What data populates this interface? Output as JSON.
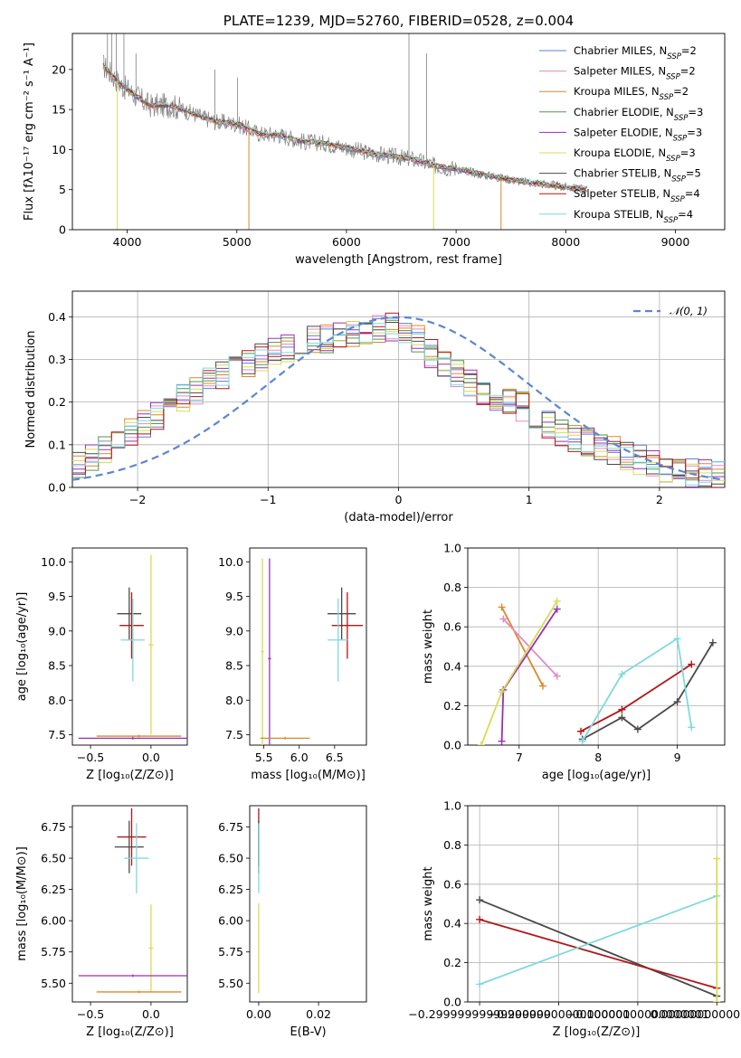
{
  "palette": {
    "chab_miles": "#5b7fd6",
    "salp_miles": "#e58ac2",
    "krou_miles": "#d98a2a",
    "chab_elodie": "#4c9a4c",
    "salp_elodie": "#9b30b5",
    "krou_elodie": "#d6dc55",
    "chab_stelib": "#4a4a4a",
    "salp_stelib": "#b01818",
    "krou_stelib": "#7fd9dc",
    "observed": "#808080",
    "gauss": "#5b86d4",
    "grid": "#b0b0b0"
  },
  "chart_data": [
    {
      "id": "spectrum",
      "type": "line",
      "title": "PLATE=1239, MJD=52760, FIBERID=0528, z=0.004",
      "xlabel": "wavelength [Angstrom, rest frame]",
      "ylabel": "Flux [fλ10⁻¹⁷ erg cm⁻² s⁻¹ A⁻¹]",
      "xlim": [
        3500,
        9450
      ],
      "ylim": [
        0,
        24.5
      ],
      "xticks": [
        4000,
        5000,
        6000,
        7000,
        8000,
        9000
      ],
      "yticks": [
        0,
        5,
        10,
        15,
        20
      ],
      "grid": false,
      "legend_position": "top-right",
      "legend": [
        "Chabrier MILES, N_SSP=2",
        "Salpeter MILES, N_SSP=2",
        "Kroupa MILES, N_SSP=2",
        "Chabrier ELODIE, N_SSP=3",
        "Salpeter ELODIE, N_SSP=3",
        "Kroupa ELODIE, N_SSP=3",
        "Chabrier STELIB, N_SSP=5",
        "Salpeter STELIB, N_SSP=4",
        "Kroupa STELIB, N_SSP=4"
      ],
      "continuum": {
        "wavelength": [
          3780,
          3850,
          3950,
          4050,
          4200,
          4400,
          4600,
          4800,
          5000,
          5200,
          5400,
          5600,
          5800,
          6000,
          6200,
          6400,
          6600,
          6800,
          7000,
          7200,
          7400,
          7600,
          7800,
          8000,
          8200
        ],
        "flux": [
          20.5,
          19.5,
          18.0,
          17.0,
          15.5,
          15.5,
          14.5,
          13.5,
          13.2,
          12.0,
          11.8,
          11.0,
          10.8,
          10.2,
          9.6,
          9.2,
          8.8,
          8.0,
          7.6,
          7.0,
          6.5,
          6.0,
          5.7,
          5.3,
          5.0
        ]
      },
      "observed_spikes": [
        {
          "wavelength": 3820,
          "flux": 24.5
        },
        {
          "wavelength": 3860,
          "flux": 24.5
        },
        {
          "wavelength": 3900,
          "flux": 24.5
        },
        {
          "wavelength": 3970,
          "flux": 24.5
        },
        {
          "wavelength": 4080,
          "flux": 22.0
        },
        {
          "wavelength": 4800,
          "flux": 20.0
        },
        {
          "wavelength": 5007,
          "flux": 19.0
        },
        {
          "wavelength": 6570,
          "flux": 24.5
        },
        {
          "wavelength": 6730,
          "flux": 22.0
        },
        {
          "wavelength": 8200,
          "flux": 5.0
        }
      ],
      "model_dropouts": [
        {
          "wavelength": 3910,
          "series": "Kroupa ELODIE"
        },
        {
          "wavelength": 5110,
          "series": "Kroupa MILES"
        },
        {
          "wavelength": 6795,
          "series": "Kroupa ELODIE"
        },
        {
          "wavelength": 7410,
          "series": "Kroupa MILES"
        }
      ]
    },
    {
      "id": "residuals",
      "type": "line",
      "xlabel": "(data-model)/error",
      "ylabel": "Normed distribution",
      "xlim": [
        -2.5,
        2.5
      ],
      "ylim": [
        0,
        0.46
      ],
      "xticks": [
        -2,
        -1,
        0,
        1,
        2
      ],
      "yticks": [
        0.0,
        0.1,
        0.2,
        0.3,
        0.4
      ],
      "grid": true,
      "legend_position": "top-right",
      "legend": [
        "𝒩(0, 1)"
      ],
      "bin_width": 0.1,
      "histogram_envelope": {
        "x": [
          -2.5,
          -2.3,
          -2.1,
          -1.9,
          -1.7,
          -1.5,
          -1.3,
          -1.1,
          -0.9,
          -0.7,
          -0.5,
          -0.3,
          -0.1,
          0.1,
          0.3,
          0.5,
          0.7,
          0.9,
          1.1,
          1.3,
          1.5,
          1.7,
          1.9,
          2.1,
          2.3,
          2.5
        ],
        "y": [
          0.05,
          0.08,
          0.12,
          0.16,
          0.2,
          0.24,
          0.27,
          0.3,
          0.32,
          0.35,
          0.35,
          0.36,
          0.38,
          0.36,
          0.3,
          0.25,
          0.22,
          0.2,
          0.16,
          0.12,
          0.1,
          0.08,
          0.06,
          0.04,
          0.03,
          0.03
        ]
      },
      "gaussian": {
        "mean": 0,
        "sigma": 1
      }
    },
    {
      "id": "z_vs_age",
      "type": "scatter",
      "xlabel": "Z [log₁₀(Z/Z⊙)]",
      "ylabel": "age  [log₁₀(age/yr)]",
      "xlim": [
        -0.65,
        0.3
      ],
      "ylim": [
        7.35,
        10.2
      ],
      "xticks": [
        -0.5,
        0.0
      ],
      "yticks": [
        7.5,
        8.0,
        8.5,
        9.0,
        9.5,
        10.0
      ],
      "grid": false,
      "points": [
        {
          "series": "Chabrier STELIB",
          "x": -0.18,
          "y": 9.25,
          "xerr": 0.1,
          "yerr": 0.38
        },
        {
          "series": "Salpeter STELIB",
          "x": -0.16,
          "y": 9.08,
          "xerr": 0.1,
          "yerr": 0.48
        },
        {
          "series": "Kroupa STELIB",
          "x": -0.15,
          "y": 8.87,
          "xerr": 0.1,
          "yerr": 0.6
        },
        {
          "series": "Kroupa ELODIE",
          "x": 0.0,
          "y": 8.8,
          "xerr": 0.02,
          "yerr": 1.3
        },
        {
          "series": "Salpeter ELODIE",
          "x": -0.15,
          "y": 7.45,
          "xerr": 0.45,
          "yerr": 0.02
        },
        {
          "series": "Kroupa MILES",
          "x": -0.1,
          "y": 7.48,
          "xerr": 0.35,
          "yerr": 0.02
        }
      ]
    },
    {
      "id": "mass_vs_age",
      "type": "scatter",
      "xlabel": "mass [log₁₀(M/M⊙)]",
      "ylabel": "",
      "xlim": [
        5.3,
        6.95
      ],
      "ylim": [
        7.35,
        10.2
      ],
      "xticks": [
        5.5,
        6.0,
        6.5
      ],
      "yticks": [
        7.5,
        8.0,
        8.5,
        9.0,
        9.5,
        10.0
      ],
      "grid": false,
      "points": [
        {
          "series": "Chabrier STELIB",
          "x": 6.6,
          "y": 9.25,
          "xerr": 0.2,
          "yerr": 0.38
        },
        {
          "series": "Salpeter STELIB",
          "x": 6.68,
          "y": 9.08,
          "xerr": 0.22,
          "yerr": 0.48
        },
        {
          "series": "Kroupa STELIB",
          "x": 6.55,
          "y": 8.87,
          "xerr": 0.15,
          "yerr": 0.6
        },
        {
          "series": "Kroupa ELODIE",
          "x": 5.48,
          "y": 8.7,
          "xerr": 0.02,
          "yerr": 1.35
        },
        {
          "series": "Salpeter ELODIE",
          "x": 5.58,
          "y": 8.6,
          "xerr": 0.02,
          "yerr": 1.45
        },
        {
          "series": "Kroupa MILES",
          "x": 5.8,
          "y": 7.45,
          "xerr": 0.35,
          "yerr": 0.02
        }
      ]
    },
    {
      "id": "age_vs_weight",
      "type": "line",
      "xlabel": "age  [log₁₀(age/yr)]",
      "ylabel": "mass weight",
      "xlim": [
        6.35,
        9.6
      ],
      "ylim": [
        0,
        1.0
      ],
      "xticks": [
        7,
        8,
        9
      ],
      "yticks": [
        0.0,
        0.2,
        0.4,
        0.6,
        0.8,
        1.0
      ],
      "grid": true,
      "series": [
        {
          "key": "chab_stelib",
          "x": [
            7.8,
            8.3,
            8.5,
            9.0,
            9.45
          ],
          "y": [
            0.03,
            0.14,
            0.08,
            0.22,
            0.52
          ]
        },
        {
          "key": "salp_stelib",
          "x": [
            7.78,
            8.3,
            9.18
          ],
          "y": [
            0.07,
            0.18,
            0.41
          ]
        },
        {
          "key": "krou_stelib",
          "x": [
            7.8,
            8.3,
            9.0,
            9.18
          ],
          "y": [
            0.02,
            0.36,
            0.54,
            0.09
          ]
        },
        {
          "key": "krou_miles",
          "x": [
            6.78,
            7.3
          ],
          "y": [
            0.7,
            0.3
          ]
        },
        {
          "key": "salp_miles",
          "x": [
            6.8,
            7.48
          ],
          "y": [
            0.64,
            0.35
          ]
        },
        {
          "key": "salp_elodie",
          "x": [
            6.78,
            6.8,
            7.48
          ],
          "y": [
            0.02,
            0.28,
            0.69
          ]
        },
        {
          "key": "krou_elodie",
          "x": [
            6.52,
            6.78,
            7.48
          ],
          "y": [
            0.0,
            0.27,
            0.73
          ]
        }
      ]
    },
    {
      "id": "z_vs_mass",
      "type": "scatter",
      "xlabel": "Z [log₁₀(Z/Z⊙)]",
      "ylabel": "mass [log₁₀(M/M⊙)]",
      "xlim": [
        -0.65,
        0.3
      ],
      "ylim": [
        5.35,
        6.92
      ],
      "xticks": [
        -0.5,
        0.0
      ],
      "yticks": [
        5.5,
        5.75,
        6.0,
        6.25,
        6.5,
        6.75
      ],
      "grid": false,
      "points": [
        {
          "series": "Chabrier STELIB",
          "x": -0.18,
          "y": 6.59,
          "xerr": 0.12,
          "yerr": 0.21
        },
        {
          "series": "Salpeter STELIB",
          "x": -0.16,
          "y": 6.67,
          "xerr": 0.12,
          "yerr": 0.23
        },
        {
          "series": "Kroupa STELIB",
          "x": -0.12,
          "y": 6.5,
          "xerr": 0.1,
          "yerr": 0.28
        },
        {
          "series": "Kroupa ELODIE",
          "x": 0.0,
          "y": 5.78,
          "xerr": 0.02,
          "yerr": 0.35
        },
        {
          "series": "Salpeter ELODIE",
          "x": -0.15,
          "y": 5.56,
          "xerr": 0.45,
          "yerr": 0.01
        },
        {
          "series": "Kroupa MILES",
          "x": -0.1,
          "y": 5.43,
          "xerr": 0.35,
          "yerr": 0.01
        }
      ]
    },
    {
      "id": "ebv_vs_mass",
      "type": "scatter",
      "xlabel": "E(B-V)",
      "ylabel": "",
      "xlim": [
        -0.003,
        0.036
      ],
      "ylim": [
        5.35,
        6.92
      ],
      "xticks": [
        0.0,
        0.02
      ],
      "yticks": [
        5.5,
        5.75,
        6.0,
        6.25,
        6.5,
        6.75
      ],
      "grid": false,
      "points": [
        {
          "series": "Salpeter STELIB",
          "x": 0.0,
          "y": 6.67,
          "xerr": 0.0,
          "yerr": 0.23
        },
        {
          "series": "Chabrier STELIB",
          "x": 0.0,
          "y": 6.59,
          "xerr": 0.0,
          "yerr": 0.21
        },
        {
          "series": "Kroupa STELIB",
          "x": 0.0,
          "y": 6.5,
          "xerr": 0.0,
          "yerr": 0.28
        },
        {
          "series": "Kroupa ELODIE",
          "x": 0.0,
          "y": 5.78,
          "xerr": 0.0,
          "yerr": 0.36
        }
      ]
    },
    {
      "id": "z_vs_weight",
      "type": "line",
      "xlabel": "Z [log₁₀(Z/Z⊙)]",
      "ylabel": "mass weight",
      "xlim": [
        -0.315,
        0.01
      ],
      "ylim": [
        0,
        1.0
      ],
      "xticks": [
        -0.3,
        -0.2,
        -0.1,
        0.0
      ],
      "yticks": [
        0.0,
        0.2,
        0.4,
        0.6,
        0.8,
        1.0
      ],
      "grid": true,
      "series": [
        {
          "key": "chab_stelib",
          "x": [
            -0.3,
            0.0
          ],
          "y": [
            0.52,
            0.03
          ]
        },
        {
          "key": "salp_stelib",
          "x": [
            -0.3,
            0.0
          ],
          "y": [
            0.42,
            0.07
          ]
        },
        {
          "key": "krou_stelib",
          "x": [
            -0.3,
            0.0
          ],
          "y": [
            0.09,
            0.54
          ]
        },
        {
          "key": "krou_elodie",
          "x": [
            0.0,
            0.0
          ],
          "y": [
            0.0,
            0.73
          ]
        }
      ]
    }
  ]
}
